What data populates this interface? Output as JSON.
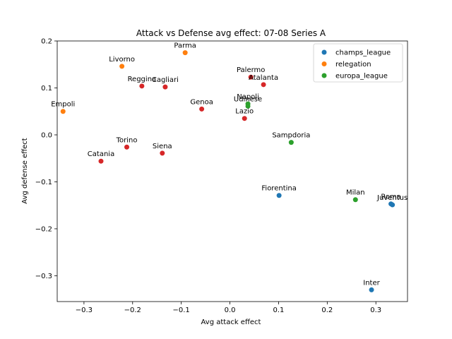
{
  "chart_data": {
    "type": "scatter",
    "title": "Attack vs Defense avg effect: 07-08 Series A",
    "xlabel": "Avg attack effect",
    "ylabel": "Avg defense effect",
    "xlim": [
      -0.355,
      0.365
    ],
    "ylim": [
      -0.355,
      0.2
    ],
    "xticks": [
      -0.3,
      -0.2,
      -0.1,
      0.0,
      0.1,
      0.2,
      0.3
    ],
    "xtick_labels": [
      "−0.3",
      "−0.2",
      "−0.1",
      "0.0",
      "0.1",
      "0.2",
      "0.3"
    ],
    "yticks": [
      -0.3,
      -0.2,
      -0.1,
      0.0,
      0.1,
      0.2
    ],
    "ytick_labels": [
      "−0.3",
      "−0.2",
      "−0.1",
      "0.0",
      "0.1",
      "0.2"
    ],
    "grid": false,
    "legend_position": "top-right",
    "legend": [
      {
        "label": "champs_league",
        "color": "#1f77b4"
      },
      {
        "label": "relegation",
        "color": "#ff7f0e"
      },
      {
        "label": "europa_league",
        "color": "#2ca02c"
      }
    ],
    "colors": {
      "champs_league": "#1f77b4",
      "relegation": "#ff7f0e",
      "europa_league": "#2ca02c",
      "other": "#d62728"
    },
    "points": [
      {
        "label": "Parma",
        "x": -0.092,
        "y": 0.175,
        "group": "relegation"
      },
      {
        "label": "Livorno",
        "x": -0.222,
        "y": 0.146,
        "group": "relegation"
      },
      {
        "label": "Empoli",
        "x": -0.343,
        "y": 0.05,
        "group": "relegation"
      },
      {
        "label": "Reggina",
        "x": -0.181,
        "y": 0.104,
        "group": "other"
      },
      {
        "label": "Cagliari",
        "x": -0.133,
        "y": 0.102,
        "group": "other"
      },
      {
        "label": "Palermo",
        "x": 0.043,
        "y": 0.123,
        "group": "other"
      },
      {
        "label": "Atalanta",
        "x": 0.069,
        "y": 0.107,
        "group": "other"
      },
      {
        "label": "Napoli",
        "x": 0.037,
        "y": 0.066,
        "group": "europa_league"
      },
      {
        "label": "Udinese",
        "x": 0.037,
        "y": 0.061,
        "group": "europa_league"
      },
      {
        "label": "Genoa",
        "x": -0.058,
        "y": 0.055,
        "group": "other"
      },
      {
        "label": "Lazio",
        "x": 0.03,
        "y": 0.035,
        "group": "other"
      },
      {
        "label": "Sampdoria",
        "x": 0.126,
        "y": -0.016,
        "group": "europa_league"
      },
      {
        "label": "Torino",
        "x": -0.212,
        "y": -0.026,
        "group": "other"
      },
      {
        "label": "Siena",
        "x": -0.139,
        "y": -0.039,
        "group": "other"
      },
      {
        "label": "Catania",
        "x": -0.265,
        "y": -0.056,
        "group": "other"
      },
      {
        "label": "Fiorentina",
        "x": 0.101,
        "y": -0.129,
        "group": "champs_league"
      },
      {
        "label": "Milan",
        "x": 0.258,
        "y": -0.138,
        "group": "europa_league"
      },
      {
        "label": "Roma",
        "x": 0.331,
        "y": -0.147,
        "group": "champs_league"
      },
      {
        "label": "Juventus",
        "x": 0.334,
        "y": -0.149,
        "group": "champs_league"
      },
      {
        "label": "Inter",
        "x": 0.291,
        "y": -0.33,
        "group": "champs_league"
      }
    ]
  }
}
